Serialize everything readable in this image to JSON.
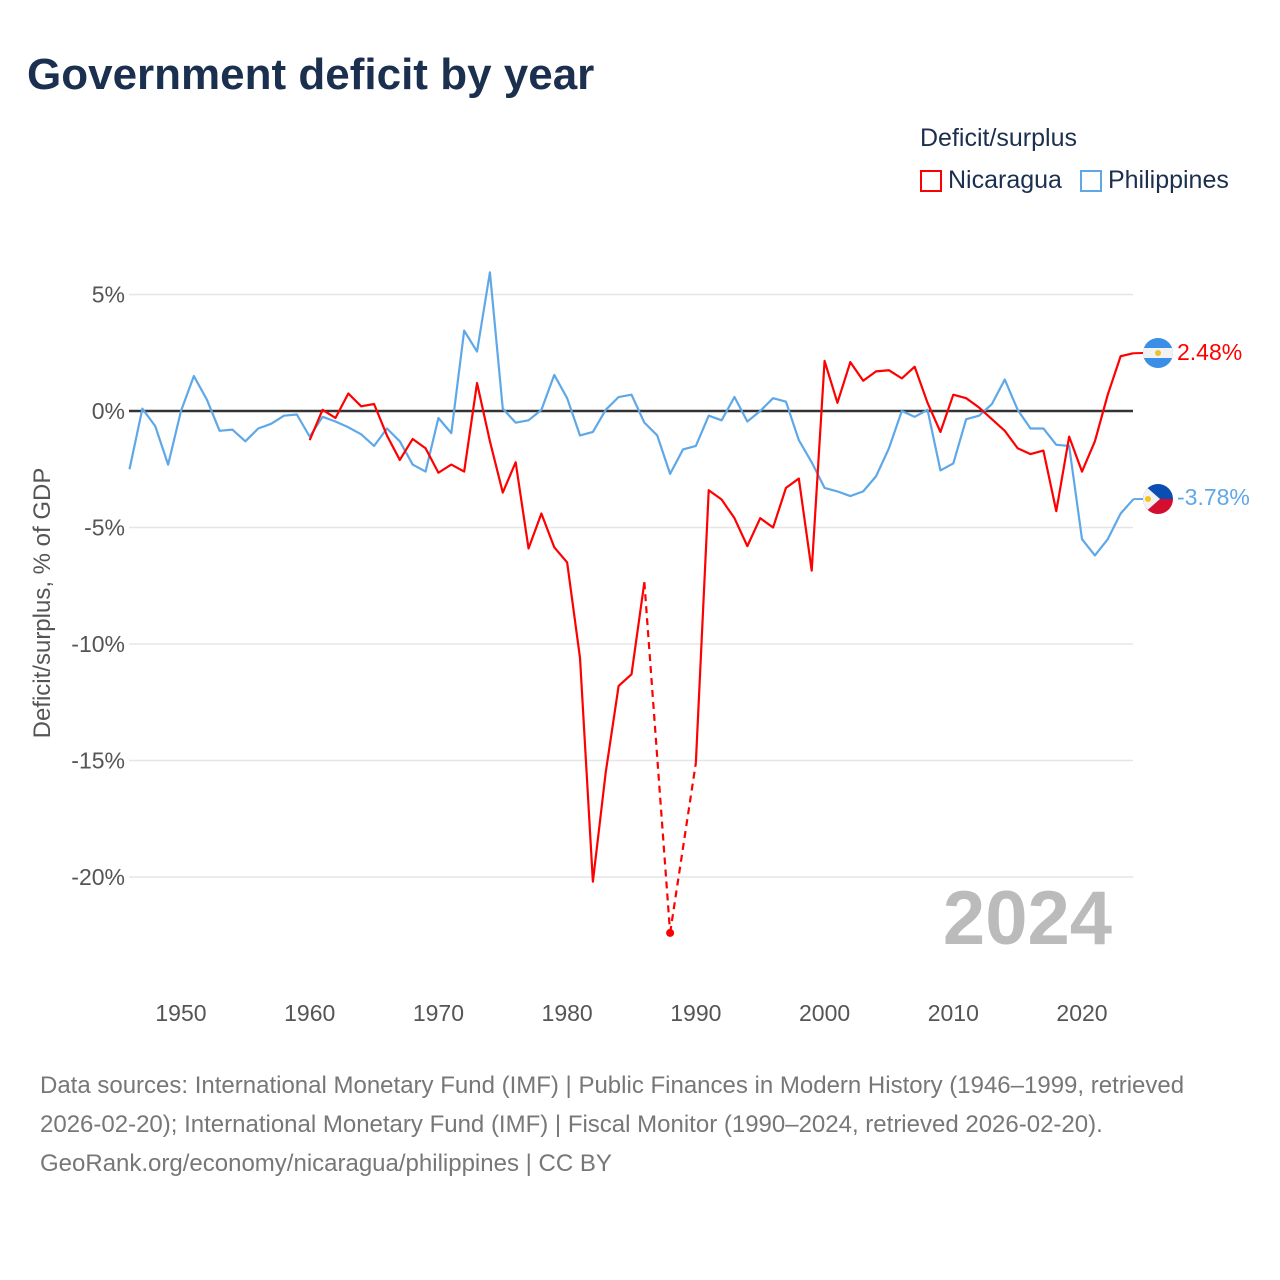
{
  "title": "Government deficit by year",
  "legend": {
    "title": "Deficit/surplus",
    "items": [
      {
        "name": "Nicaragua",
        "color": "#ff0000"
      },
      {
        "name": "Philippines",
        "color": "#5fa8e8"
      }
    ]
  },
  "year_label": "2024",
  "end_labels": {
    "nicaragua": "2.48%",
    "philippines": "-3.78%"
  },
  "footer": {
    "sources": "Data sources: International Monetary Fund (IMF) | Public Finances in Modern History (1946–1999, retrieved 2026-02-20); International Monetary Fund (IMF) | Fiscal Monitor (1990–2024, retrieved 2026-02-20).",
    "credit": "GeoRank.org/economy/nicaragua/philippines | CC BY"
  },
  "chart_data": {
    "type": "line",
    "title": "Government deficit by year",
    "xlabel": "",
    "ylabel": "Deficit/surplus, % of GDP",
    "xlim": [
      1946,
      2024
    ],
    "ylim": [
      -24,
      6
    ],
    "x_ticks": [
      "1950",
      "1960",
      "1970",
      "1980",
      "1990",
      "2000",
      "2010",
      "2020"
    ],
    "y_ticks": [
      {
        "v": 5,
        "label": "5%"
      },
      {
        "v": 0,
        "label": "0%"
      },
      {
        "v": -5,
        "label": "-5%"
      },
      {
        "v": -10,
        "label": "-10%"
      },
      {
        "v": -15,
        "label": "-15%"
      },
      {
        "v": -20,
        "label": "-20%"
      }
    ],
    "grid": true,
    "legend_position": "top-right",
    "series": [
      {
        "name": "Philippines",
        "color": "#5fa8e8",
        "start_year": 1946,
        "values": [
          -2.5,
          0.1,
          -0.65,
          -2.3,
          0,
          1.5,
          0.5,
          -0.85,
          -0.8,
          -1.3,
          -0.75,
          -0.55,
          -0.2,
          -0.15,
          -1.1,
          -0.25,
          -0.45,
          -0.7,
          -1.0,
          -1.5,
          -0.75,
          -1.3,
          -2.3,
          -2.6,
          -0.3,
          -0.95,
          3.45,
          2.55,
          5.95,
          0.1,
          -0.5,
          -0.4,
          0.05,
          1.55,
          0.55,
          -1.05,
          -0.9,
          0.05,
          0.6,
          0.7,
          -0.5,
          -1.05,
          -2.7,
          -1.65,
          -1.5,
          -0.2,
          -0.4,
          0.6,
          -0.45,
          0,
          0.55,
          0.4,
          -1.25,
          -2.2,
          -3.3,
          -3.45,
          -3.65,
          -3.45,
          -2.8,
          -1.6,
          0,
          -0.25,
          0.05,
          -2.55,
          -2.25,
          -0.35,
          -0.2,
          0.3,
          1.35,
          0.05,
          -0.75,
          -0.75,
          -1.45,
          -1.5,
          -5.5,
          -6.2,
          -5.5,
          -4.4,
          -3.78
        ]
      },
      {
        "name": "Nicaragua",
        "color": "#ff0000",
        "start_year": 1960,
        "values": [
          -1.25,
          0.05,
          -0.3,
          0.75,
          0.2,
          0.3,
          -1.05,
          -2.1,
          -1.2,
          -1.6,
          -2.65,
          -2.3,
          -2.6,
          1.2,
          -1.3,
          -3.5,
          -2.2,
          -5.9,
          -4.4,
          -5.85,
          -6.5,
          -10.6,
          -20.2,
          -15.5,
          -11.8,
          -11.3,
          -7.35,
          null,
          -22.4,
          null,
          -15.1,
          -3.4,
          -3.8,
          -4.6,
          -5.8,
          -4.6,
          -5.0,
          -3.3,
          -2.9,
          -6.85,
          2.15,
          0.35,
          2.1,
          1.3,
          1.7,
          1.75,
          1.4,
          1.9,
          0.35,
          -0.9,
          0.7,
          0.55,
          0.15,
          -0.35,
          -0.85,
          -1.6,
          -1.85,
          -1.7,
          -4.3,
          -1.1,
          -2.6,
          -1.3,
          0.7,
          2.35,
          2.48
        ]
      }
    ]
  }
}
